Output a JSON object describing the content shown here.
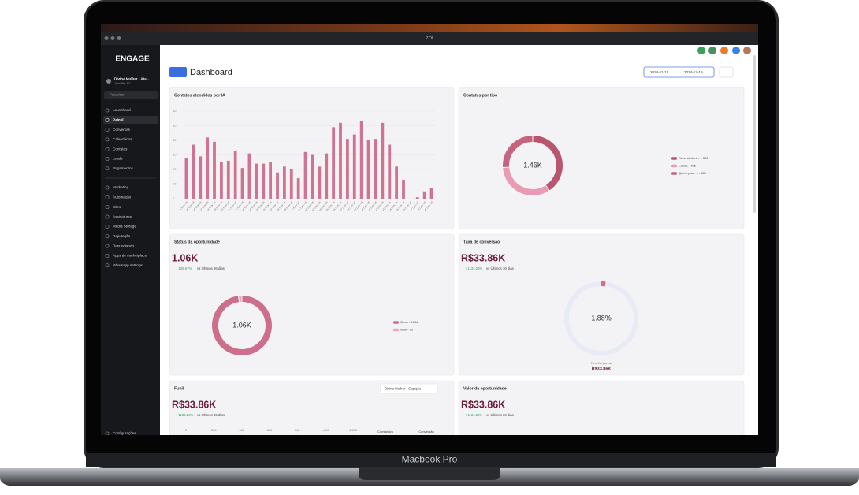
{
  "browser": {
    "title": "ZOI"
  },
  "sidebar": {
    "logo": "ENGAGE",
    "account": {
      "name": "Divina Mulher - Ata...",
      "location": "Joinville, SC"
    },
    "search": "Pesquisar",
    "menu": [
      "Launchpad",
      "Painel",
      "Conversas",
      "Calendários",
      "Contatos",
      "Leads",
      "Pagamentos"
    ],
    "menu2": [
      "Marketing",
      "Automação",
      "Sites",
      "Assinaturas",
      "Media Storage",
      "Reputação",
      "Denunciando",
      "Apps de marketplace",
      "Whatsapp settings"
    ],
    "settings": "Configurações"
  },
  "header": {
    "title": "Dashboard",
    "date_start": "2024-11-14",
    "date_end": "2024-12-19"
  },
  "cards": {
    "contatos_ia": {
      "title": "Contatos atendidos por IA",
      "chart": {
        "type": "bar",
        "color": "#cf7391",
        "categories": [
          "14 Nov 24",
          "15 Nov 24",
          "16 Nov 24",
          "17 Nov 24",
          "18 Nov 24",
          "19 Nov 24",
          "20 Nov 24",
          "21 Nov 24",
          "22 Nov 24",
          "23 Nov 24",
          "24 Nov 24",
          "25 Nov 24",
          "26 Nov 24",
          "27 Nov 24",
          "28 Nov 24",
          "29 Nov 24",
          "30 Nov 24",
          "01 Dec 24",
          "02 Dec 24",
          "03 Dec 24",
          "04 Dec 24",
          "05 Dec 24",
          "06 Dec 24",
          "07 Dec 24",
          "08 Dec 24",
          "09 Dec 24",
          "10 Dec 24",
          "11 Dec 24",
          "12 Dec 24",
          "13 Dec 24",
          "14 Dec 24",
          "15 Dec 24",
          "16 Dec 24",
          "17 Dec 24",
          "18 Dec 24",
          "19 Dec 24"
        ],
        "values": [
          28,
          37,
          29,
          42,
          39,
          25,
          26,
          33,
          21,
          31,
          24,
          24,
          25,
          18,
          22,
          20,
          14,
          32,
          30,
          22,
          31,
          49,
          52,
          41,
          44,
          53,
          40,
          41,
          52,
          37,
          22,
          13,
          0,
          1,
          5,
          7
        ],
        "ylim": [
          0,
          60
        ],
        "yticks": [
          0,
          10,
          20,
          30,
          40,
          50,
          60
        ],
        "grid": true
      }
    },
    "contatos_tipo": {
      "title": "Contatos por tipo",
      "chart": {
        "type": "donut",
        "total_label": "1.46K",
        "series": [
          {
            "label": "Revendedora... - 592",
            "value": 592,
            "color": "#b9566f"
          },
          {
            "label": "Lojista - 485",
            "value": 485,
            "color": "#e79cb4"
          },
          {
            "label": "Quero para ... - 380",
            "value": 380,
            "color": "#c4647f"
          }
        ]
      }
    },
    "status": {
      "title": "Status da oportunidade",
      "value": "1.06K",
      "change": "↑ 126.67%",
      "compare": "vs Últimos 36 dias",
      "chart": {
        "type": "donut",
        "total_label": "1.06K",
        "series": [
          {
            "label": "Open - 1044",
            "value": 1044,
            "color": "#cd6f8c"
          },
          {
            "label": "Won - 20",
            "value": 20,
            "color": "#eba9bd"
          }
        ]
      }
    },
    "conversao": {
      "title": "Taxa de conversão",
      "value": "R$33.86K",
      "change": "↑ 1134.26%",
      "compare": "vs Últimos 36 dias",
      "chart": {
        "type": "gauge",
        "value": 1.88,
        "label": "1.88%",
        "color": "#cd6f8c",
        "track": "#e8ebf5"
      },
      "caption": "Receita ganha",
      "caption_value": "R$33.86K"
    },
    "funil": {
      "title": "Funil",
      "select": "Divina Mulher - Captção",
      "value": "R$33.86K",
      "change": "↑ 1134.26%",
      "compare": "vs Últimos 36 dias",
      "chart": {
        "type": "funnel",
        "xlim": [
          0,
          1200
        ],
        "xticks": [
          0,
          200,
          400,
          600,
          800,
          {
            "value": 1000,
            "label": "1,000"
          },
          {
            "value": 1200,
            "label": "1,200"
          }
        ],
        "columns": [
          "Cumulativo",
          "Conversão"
        ]
      }
    },
    "valor": {
      "title": "Valor da oportunidade",
      "value": "R$33.86K",
      "change": "↑ 1134.26%",
      "compare": "vs Últimos 36 dias"
    }
  },
  "device": {
    "label": "Macbook Pro"
  }
}
